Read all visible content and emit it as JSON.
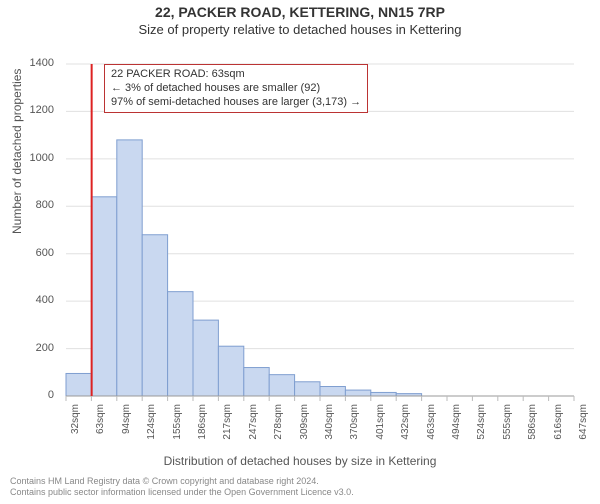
{
  "title_main": "22, PACKER ROAD, KETTERING, NN15 7RP",
  "title_sub": "Size of property relative to detached houses in Kettering",
  "y_axis_label": "Number of detached properties",
  "x_axis_label": "Distribution of detached houses by size in Kettering",
  "footer_line1": "Contains HM Land Registry data © Crown copyright and database right 2024.",
  "footer_line2": "Contains public sector information licensed under the Open Government Licence v3.0.",
  "infobox": {
    "line1": "22 PACKER ROAD: 63sqm",
    "line2": "← 3% of detached houses are smaller (92)",
    "line3": "97% of semi-detached houses are larger (3,173) →"
  },
  "chart": {
    "type": "histogram",
    "background_color": "#ffffff",
    "grid_color": "#e0e0e0",
    "axis_color": "#999999",
    "tick_color": "#bbbbbb",
    "bar_fill": "#c9d8f0",
    "bar_stroke": "#7f9ed0",
    "marker_line_color": "#dd2222",
    "marker_x_value": 63,
    "ylim": [
      0,
      1400
    ],
    "ytick_step": 200,
    "x_start": 32,
    "x_step": 30.7,
    "x_labels": [
      "32sqm",
      "63sqm",
      "94sqm",
      "124sqm",
      "155sqm",
      "186sqm",
      "217sqm",
      "247sqm",
      "278sqm",
      "309sqm",
      "340sqm",
      "370sqm",
      "401sqm",
      "432sqm",
      "463sqm",
      "494sqm",
      "524sqm",
      "555sqm",
      "586sqm",
      "616sqm",
      "647sqm"
    ],
    "values": [
      95,
      840,
      1080,
      680,
      440,
      320,
      210,
      120,
      90,
      60,
      40,
      25,
      15,
      10,
      0,
      0,
      0,
      0,
      0,
      0
    ],
    "title_fontsize": 14,
    "label_fontsize": 12,
    "tick_fontsize": 11
  }
}
